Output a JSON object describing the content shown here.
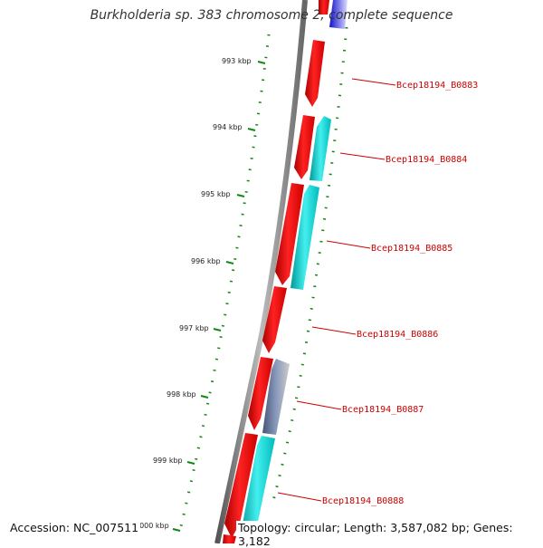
{
  "title": "Burkholderia sp. 383 chromosome 2, complete sequence",
  "accession": "Accession: NC_007511",
  "summary": "Topology: circular; Length: 3,587,082 bp; Genes: 3,182",
  "colors": {
    "backbone": "#888888",
    "forward_gene": "#ee0000",
    "reverse_gene": "#00cccc",
    "other_gene": "#5577aa",
    "tick": "#118811",
    "label": "#cc0000"
  },
  "kbp_ticks": [
    "993 kbp",
    "994 kbp",
    "995 kbp",
    "996 kbp",
    "997 kbp",
    "998 kbp",
    "999 kbp",
    "1000 kbp"
  ],
  "gene_labels": [
    "Bcep18194_B0883",
    "Bcep18194_B0884",
    "Bcep18194_B0885",
    "Bcep18194_B0886",
    "Bcep18194_B0887",
    "Bcep18194_B0888"
  ]
}
